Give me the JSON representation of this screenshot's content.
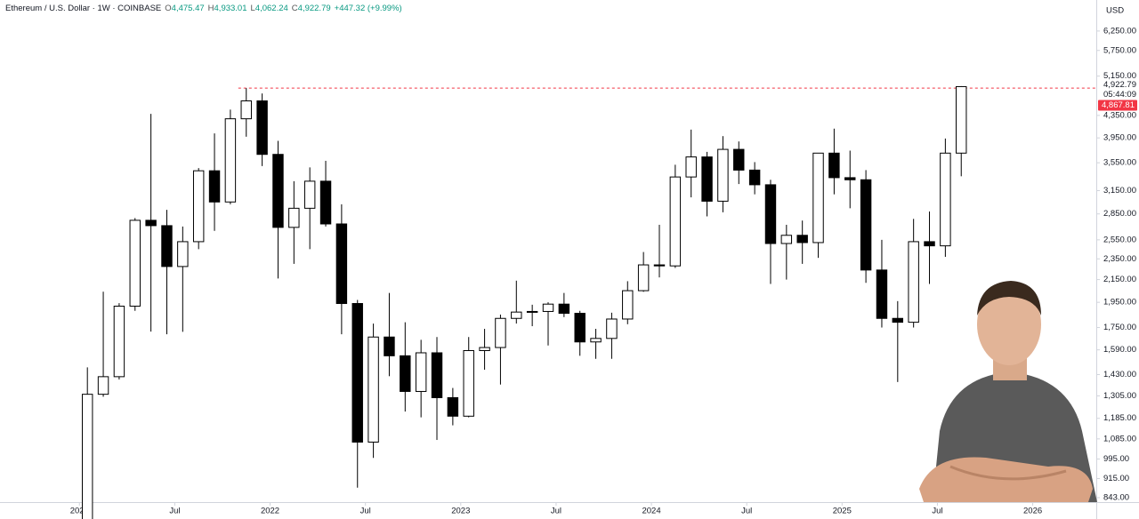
{
  "header": {
    "symbol": "Ethereum / U.S. Dollar · 1W · COINBASE",
    "ohlc": [
      {
        "key": "O",
        "value": "4,475.47"
      },
      {
        "key": "H",
        "value": "4,933.01"
      },
      {
        "key": "L",
        "value": "4,062.24"
      },
      {
        "key": "C",
        "value": "4,922.79"
      }
    ],
    "change": "+447.32 (+9.99%)"
  },
  "chart_data": {
    "type": "candlestick",
    "currency": "USD",
    "log_scale": true,
    "x": [
      "2021-01",
      "2021-02",
      "2021-03",
      "2021-04",
      "2021-05",
      "2021-06",
      "2021-07",
      "2021-08",
      "2021-09",
      "2021-10",
      "2021-11",
      "2021-12",
      "2022-01",
      "2022-02",
      "2022-03",
      "2022-04",
      "2022-05",
      "2022-06",
      "2022-07",
      "2022-08",
      "2022-09",
      "2022-10",
      "2022-11",
      "2022-12",
      "2023-01",
      "2023-02",
      "2023-03",
      "2023-04",
      "2023-05",
      "2023-06",
      "2023-07",
      "2023-08",
      "2023-09",
      "2023-10",
      "2023-11",
      "2023-12",
      "2024-01",
      "2024-02",
      "2024-03",
      "2024-04",
      "2024-05",
      "2024-06",
      "2024-07",
      "2024-08",
      "2024-09",
      "2024-10",
      "2024-11",
      "2024-12",
      "2025-01",
      "2025-02",
      "2025-03",
      "2025-04",
      "2025-05",
      "2025-06",
      "2025-07",
      "2025-08"
    ],
    "open": [
      737,
      1314,
      1417,
      1918,
      2773,
      2710,
      2274,
      2530,
      3430,
      3000,
      4288,
      4630,
      3680,
      2690,
      2920,
      3280,
      2730,
      1940,
      1070,
      1680,
      1550,
      1330,
      1570,
      1295,
      1196,
      1585,
      1606,
      1820,
      1870,
      1875,
      1935,
      1860,
      1645,
      1670,
      1815,
      2050,
      2290,
      2280,
      3340,
      3640,
      3010,
      3760,
      3440,
      3230,
      2510,
      2600,
      2520,
      3700,
      3330,
      3300,
      2240,
      1820,
      1790,
      2530,
      2485,
      3700
    ],
    "high": [
      1475,
      2041,
      1943,
      2800,
      4380,
      2900,
      2700,
      3470,
      4027,
      4460,
      4891,
      4780,
      3900,
      3280,
      3480,
      3580,
      2970,
      1970,
      1780,
      2030,
      1790,
      1660,
      1680,
      1350,
      1680,
      1740,
      1850,
      2140,
      1930,
      1950,
      2030,
      1880,
      1740,
      1865,
      2135,
      2420,
      2720,
      3520,
      4093,
      3720,
      3980,
      3890,
      3560,
      3300,
      2720,
      2770,
      3700,
      4110,
      3740,
      3440,
      2550,
      1960,
      2790,
      2880,
      3940,
      4933.01
    ],
    "low": [
      714,
      1300,
      1400,
      1880,
      1720,
      1700,
      1718,
      2450,
      2650,
      2970,
      3970,
      3500,
      2160,
      2300,
      2450,
      2700,
      1700,
      880,
      1000,
      1420,
      1220,
      1190,
      1080,
      1150,
      1190,
      1460,
      1370,
      1780,
      1760,
      1620,
      1830,
      1550,
      1530,
      1530,
      1775,
      2040,
      2170,
      2260,
      3060,
      2820,
      2870,
      3240,
      3100,
      2110,
      2150,
      2300,
      2360,
      3100,
      2920,
      2120,
      1750,
      1385,
      1750,
      2110,
      2370,
      3350
    ],
    "close": [
      1314,
      1417,
      1918,
      2773,
      2710,
      2274,
      2530,
      3430,
      3000,
      4288,
      4630,
      3680,
      2690,
      2920,
      3280,
      2730,
      1940,
      1070,
      1680,
      1550,
      1330,
      1570,
      1295,
      1196,
      1585,
      1606,
      1820,
      1870,
      1875,
      1935,
      1860,
      1645,
      1670,
      1815,
      2050,
      2290,
      2280,
      3340,
      3640,
      3010,
      3760,
      3440,
      3230,
      2510,
      2600,
      2520,
      3700,
      3330,
      3300,
      2240,
      1820,
      1790,
      2530,
      2485,
      3700,
      4922.79
    ],
    "up_color": "#ffffff",
    "down_color": "#000000",
    "ylim": [
      827,
      7140
    ],
    "yticks": [
      {
        "value": 843,
        "label": "843.00"
      },
      {
        "value": 915,
        "label": "915.00"
      },
      {
        "value": 995,
        "label": "995.00"
      },
      {
        "value": 1085,
        "label": "1,085.00"
      },
      {
        "value": 1185,
        "label": "1,185.00"
      },
      {
        "value": 1305,
        "label": "1,305.00"
      },
      {
        "value": 1430,
        "label": "1,430.00"
      },
      {
        "value": 1590,
        "label": "1,590.00"
      },
      {
        "value": 1750,
        "label": "1,750.00"
      },
      {
        "value": 1950,
        "label": "1,950.00"
      },
      {
        "value": 2150,
        "label": "2,150.00"
      },
      {
        "value": 2350,
        "label": "2,350.00"
      },
      {
        "value": 2550,
        "label": "2,550.00"
      },
      {
        "value": 2850,
        "label": "2,850.00"
      },
      {
        "value": 3150,
        "label": "3,150.00"
      },
      {
        "value": 3550,
        "label": "3,550.00"
      },
      {
        "value": 3950,
        "label": "3,950.00"
      },
      {
        "value": 4350,
        "label": "4,350.00"
      },
      {
        "value": 5150,
        "label": "5,150.00"
      },
      {
        "value": 5750,
        "label": "5,750.00"
      },
      {
        "value": 6250,
        "label": "6,250.00"
      }
    ],
    "xlim": [
      "2020-08",
      "2026-05"
    ],
    "xticks": [
      {
        "value": "2021-01",
        "label": "2021"
      },
      {
        "value": "2021-07",
        "label": "Jul"
      },
      {
        "value": "2022-01",
        "label": "2022"
      },
      {
        "value": "2022-07",
        "label": "Jul"
      },
      {
        "value": "2023-01",
        "label": "2023"
      },
      {
        "value": "2023-07",
        "label": "Jul"
      },
      {
        "value": "2024-01",
        "label": "2024"
      },
      {
        "value": "2024-07",
        "label": "Jul"
      },
      {
        "value": "2025-01",
        "label": "2025"
      },
      {
        "value": "2025-07",
        "label": "Jul"
      },
      {
        "value": "2026-01",
        "label": "2026"
      }
    ],
    "last_price": {
      "value": 4922.79,
      "label": "4,922.79",
      "countdown": "05:44:09"
    },
    "marker_price": {
      "value": 4867.81,
      "label": "4,867.81",
      "color": "#f23645"
    },
    "high_line": {
      "value": 4891,
      "color": "#f23645"
    }
  }
}
